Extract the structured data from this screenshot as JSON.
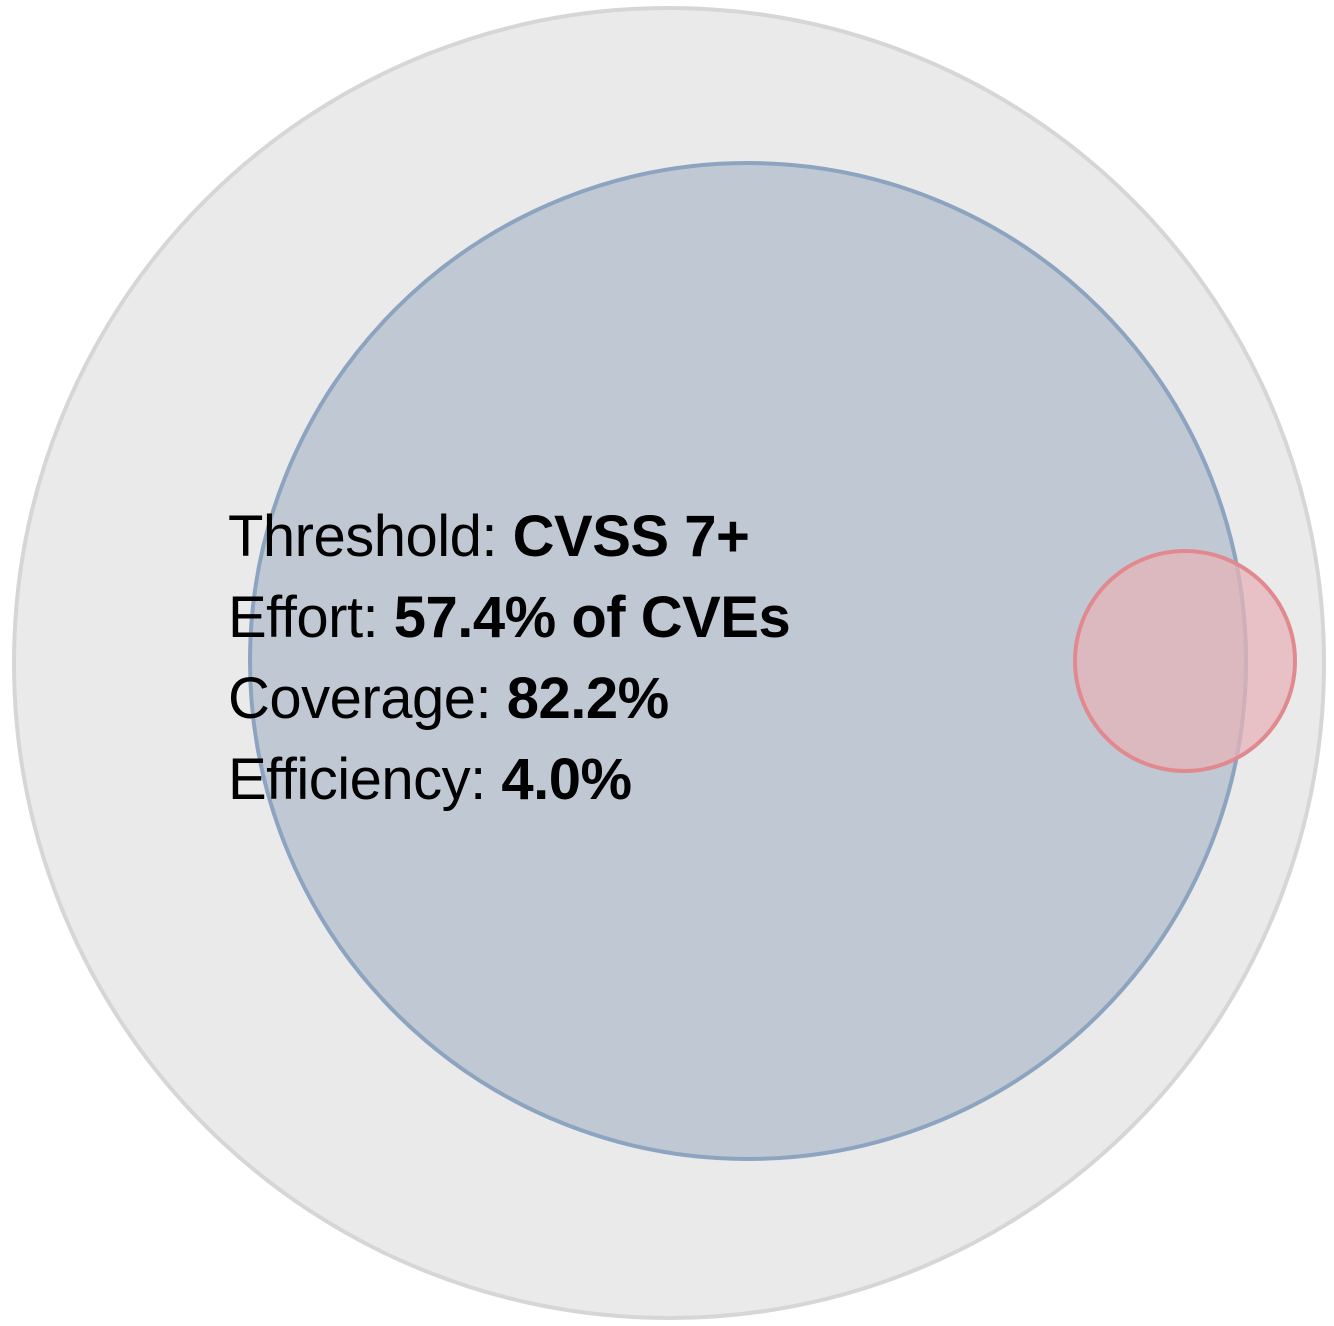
{
  "diagram": {
    "type": "venn",
    "sets": [
      {
        "role": "universe",
        "fill": "#eaeaea",
        "stroke": "#d6d6d6"
      },
      {
        "role": "remediated",
        "fill": "#c0c9d3",
        "stroke": "#8ca4c0"
      },
      {
        "role": "exploited",
        "fill": "#e6b3b8",
        "stroke": "#e08a90",
        "fill_opacity": 0.75
      }
    ]
  },
  "stats": [
    {
      "label": "Threshold:",
      "value": "CVSS 7+"
    },
    {
      "label": "Effort:",
      "value": "57.4% of CVEs"
    },
    {
      "label": "Coverage:",
      "value": "82.2%"
    },
    {
      "label": "Efficiency:",
      "value": "4.0%"
    }
  ]
}
